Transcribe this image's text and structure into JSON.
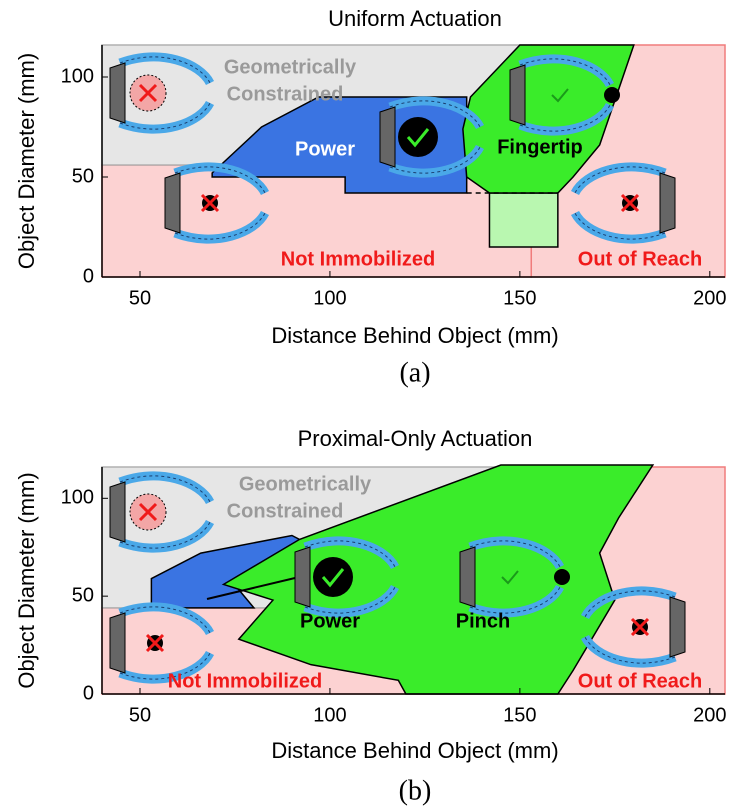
{
  "panels": [
    {
      "title": "Uniform Actuation",
      "xlabel": "Distance Behind Object (mm)",
      "ylabel": "Object Diameter (mm)",
      "caption": "(a)",
      "xlim": [
        40,
        204
      ],
      "ylim": [
        0,
        116
      ],
      "xticks": [
        50,
        100,
        150,
        200
      ],
      "yticks": [
        0,
        50,
        100
      ],
      "regions": [
        {
          "label": [
            "Out of Reach"
          ],
          "color": "#fcd2d2",
          "edge": "#f07c7c",
          "label_color": "#f01a1a",
          "points": [
            [
              153,
              0
            ],
            [
              204,
              0
            ],
            [
              204,
              116
            ],
            [
              153,
              116
            ]
          ]
        },
        {
          "label": [
            "Not Immobilized"
          ],
          "color": "#fcd2d2",
          "edge": "#f07c7c",
          "label_color": "#f01a1a",
          "points": [
            [
              40,
              0
            ],
            [
              153,
              0
            ],
            [
              153,
              56
            ],
            [
              40,
              56
            ]
          ]
        },
        {
          "label": [
            "Geometrically",
            "Constrained"
          ],
          "color": "#e6e6e6",
          "edge": "#b0b0b0",
          "label_color": "#9a9a9a",
          "points": [
            [
              40,
              56
            ],
            [
              153,
              56
            ],
            [
              153,
              116
            ],
            [
              40,
              116
            ]
          ]
        },
        {
          "label": [
            "Power"
          ],
          "color": "#3a74e2",
          "edge": "#000000",
          "label_color": "#ffffff",
          "points": [
            [
              69,
              52
            ],
            [
              82,
              75
            ],
            [
              97,
              90
            ],
            [
              136,
              90
            ],
            [
              136,
              42
            ],
            [
              104,
              42
            ],
            [
              104,
              50
            ],
            [
              69,
              50
            ]
          ]
        },
        {
          "color": "#b9f7b0",
          "edge": "#000000",
          "points": [
            [
              142,
              15
            ],
            [
              160,
              15
            ],
            [
              160,
              42
            ],
            [
              142,
              42
            ]
          ]
        },
        {
          "label": [
            "Fingertip"
          ],
          "color": "#3aec2a",
          "edge": "#000000",
          "label_color": "#000000",
          "points": [
            [
              150,
              116
            ],
            [
              180,
              116
            ],
            [
              171,
              66
            ],
            [
              164,
              50
            ],
            [
              160,
              42
            ],
            [
              142,
              42
            ],
            [
              136,
              50
            ],
            [
              135,
              74
            ],
            [
              137,
              90
            ]
          ]
        }
      ]
    },
    {
      "title": "Proximal-Only Actuation",
      "xlabel": "Distance Behind Object (mm)",
      "ylabel": "Object Diameter (mm)",
      "caption": "(b)",
      "xlim": [
        40,
        204
      ],
      "ylim": [
        0,
        116
      ],
      "xticks": [
        50,
        100,
        150,
        200
      ],
      "yticks": [
        0,
        50,
        100
      ],
      "regions": [
        {
          "label": [
            "Out of Reach"
          ],
          "color": "#fcd2d2",
          "edge": "#f07c7c",
          "label_color": "#f01a1a",
          "points": [
            [
              150,
              0
            ],
            [
              204,
              0
            ],
            [
              204,
              116
            ],
            [
              150,
              116
            ]
          ]
        },
        {
          "label": [
            "Not Immobilized"
          ],
          "color": "#fcd2d2",
          "edge": "#f07c7c",
          "label_color": "#f01a1a",
          "points": [
            [
              40,
              0
            ],
            [
              150,
              0
            ],
            [
              150,
              44
            ],
            [
              40,
              44
            ]
          ]
        },
        {
          "label": [
            "Geometrically",
            "Constrained"
          ],
          "color": "#e6e6e6",
          "edge": "#b0b0b0",
          "label_color": "#9a9a9a",
          "points": [
            [
              40,
              44
            ],
            [
              150,
              44
            ],
            [
              150,
              116
            ],
            [
              40,
              116
            ]
          ]
        },
        {
          "color": "#3a74e2",
          "edge": "#000000",
          "points": [
            [
              53,
              44
            ],
            [
              53,
              59
            ],
            [
              66,
              72
            ],
            [
              90,
              81
            ],
            [
              95,
              76
            ],
            [
              74,
              58
            ],
            [
              80,
              44
            ]
          ]
        },
        {
          "label": [
            "Power"
          ],
          "color": "#3aec2a",
          "edge": "#000000",
          "label_color": "#000000",
          "points": [
            [
              145,
              117
            ],
            [
              185,
              117
            ],
            [
              176,
              90
            ],
            [
              171,
              72
            ],
            [
              175,
              48
            ],
            [
              164,
              12
            ],
            [
              160,
              0
            ],
            [
              120,
              0
            ],
            [
              118,
              7
            ],
            [
              95,
              15
            ],
            [
              76,
              28
            ],
            [
              85,
              48
            ],
            [
              72,
              56
            ],
            [
              92,
              79
            ]
          ]
        },
        {
          "label": [
            "Pinch"
          ],
          "color": "#3aec2a",
          "edge": "#3aec2a",
          "label_color": "#000000",
          "points": [
            [
              130,
              40
            ],
            [
              140,
              40
            ],
            [
              140,
              50
            ],
            [
              130,
              50
            ]
          ]
        }
      ]
    }
  ]
}
